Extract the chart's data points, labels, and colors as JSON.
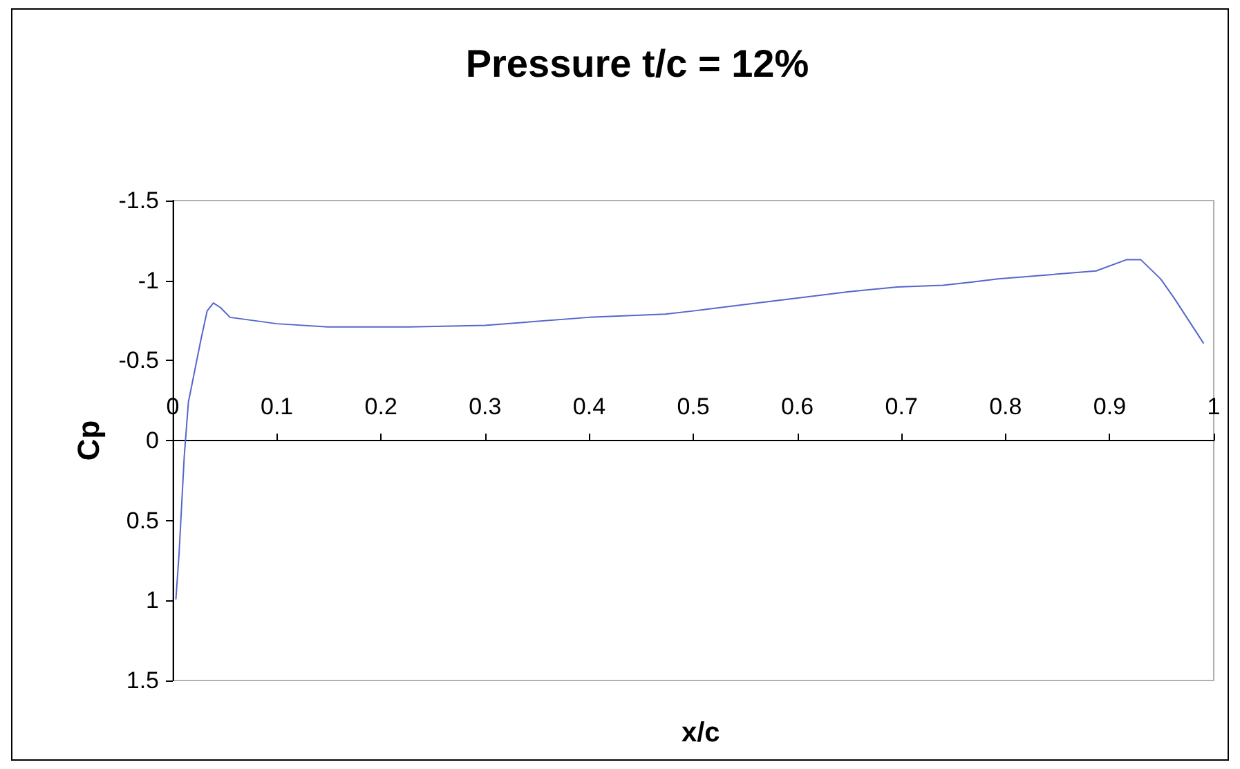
{
  "chart_data": {
    "type": "line",
    "title": "Pressure t/c = 12%",
    "xlabel": "x/c",
    "ylabel": "Cp",
    "x": [
      0.003,
      0.006,
      0.011,
      0.015,
      0.027,
      0.033,
      0.039,
      0.046,
      0.055,
      0.1,
      0.149,
      0.227,
      0.3,
      0.4,
      0.473,
      0.5,
      0.55,
      0.6,
      0.65,
      0.696,
      0.74,
      0.767,
      0.793,
      0.887,
      0.916,
      0.93,
      0.949,
      0.962,
      0.99
    ],
    "series": [
      {
        "color": "#5566cc",
        "values": [
          0.99,
          0.71,
          0.1,
          -0.24,
          -0.63,
          -0.81,
          -0.86,
          -0.83,
          -0.77,
          -0.73,
          -0.71,
          -0.71,
          -0.72,
          -0.77,
          -0.79,
          -0.81,
          -0.85,
          -0.89,
          -0.93,
          -0.96,
          -0.97,
          -0.99,
          -1.01,
          -1.06,
          -1.13,
          -1.13,
          -1.01,
          -0.89,
          -0.61
        ]
      }
    ],
    "xlim": [
      0,
      1
    ],
    "xticks": [
      0,
      0.1,
      0.2,
      0.3,
      0.4,
      0.5,
      0.6,
      0.7,
      0.8,
      0.9,
      1
    ],
    "ylim": [
      1.5,
      -1.5
    ],
    "yticks": [
      -1.5,
      -1,
      -0.5,
      0,
      0.5,
      1,
      1.5
    ],
    "grid": false,
    "marker": "none",
    "line_style": "solid"
  }
}
